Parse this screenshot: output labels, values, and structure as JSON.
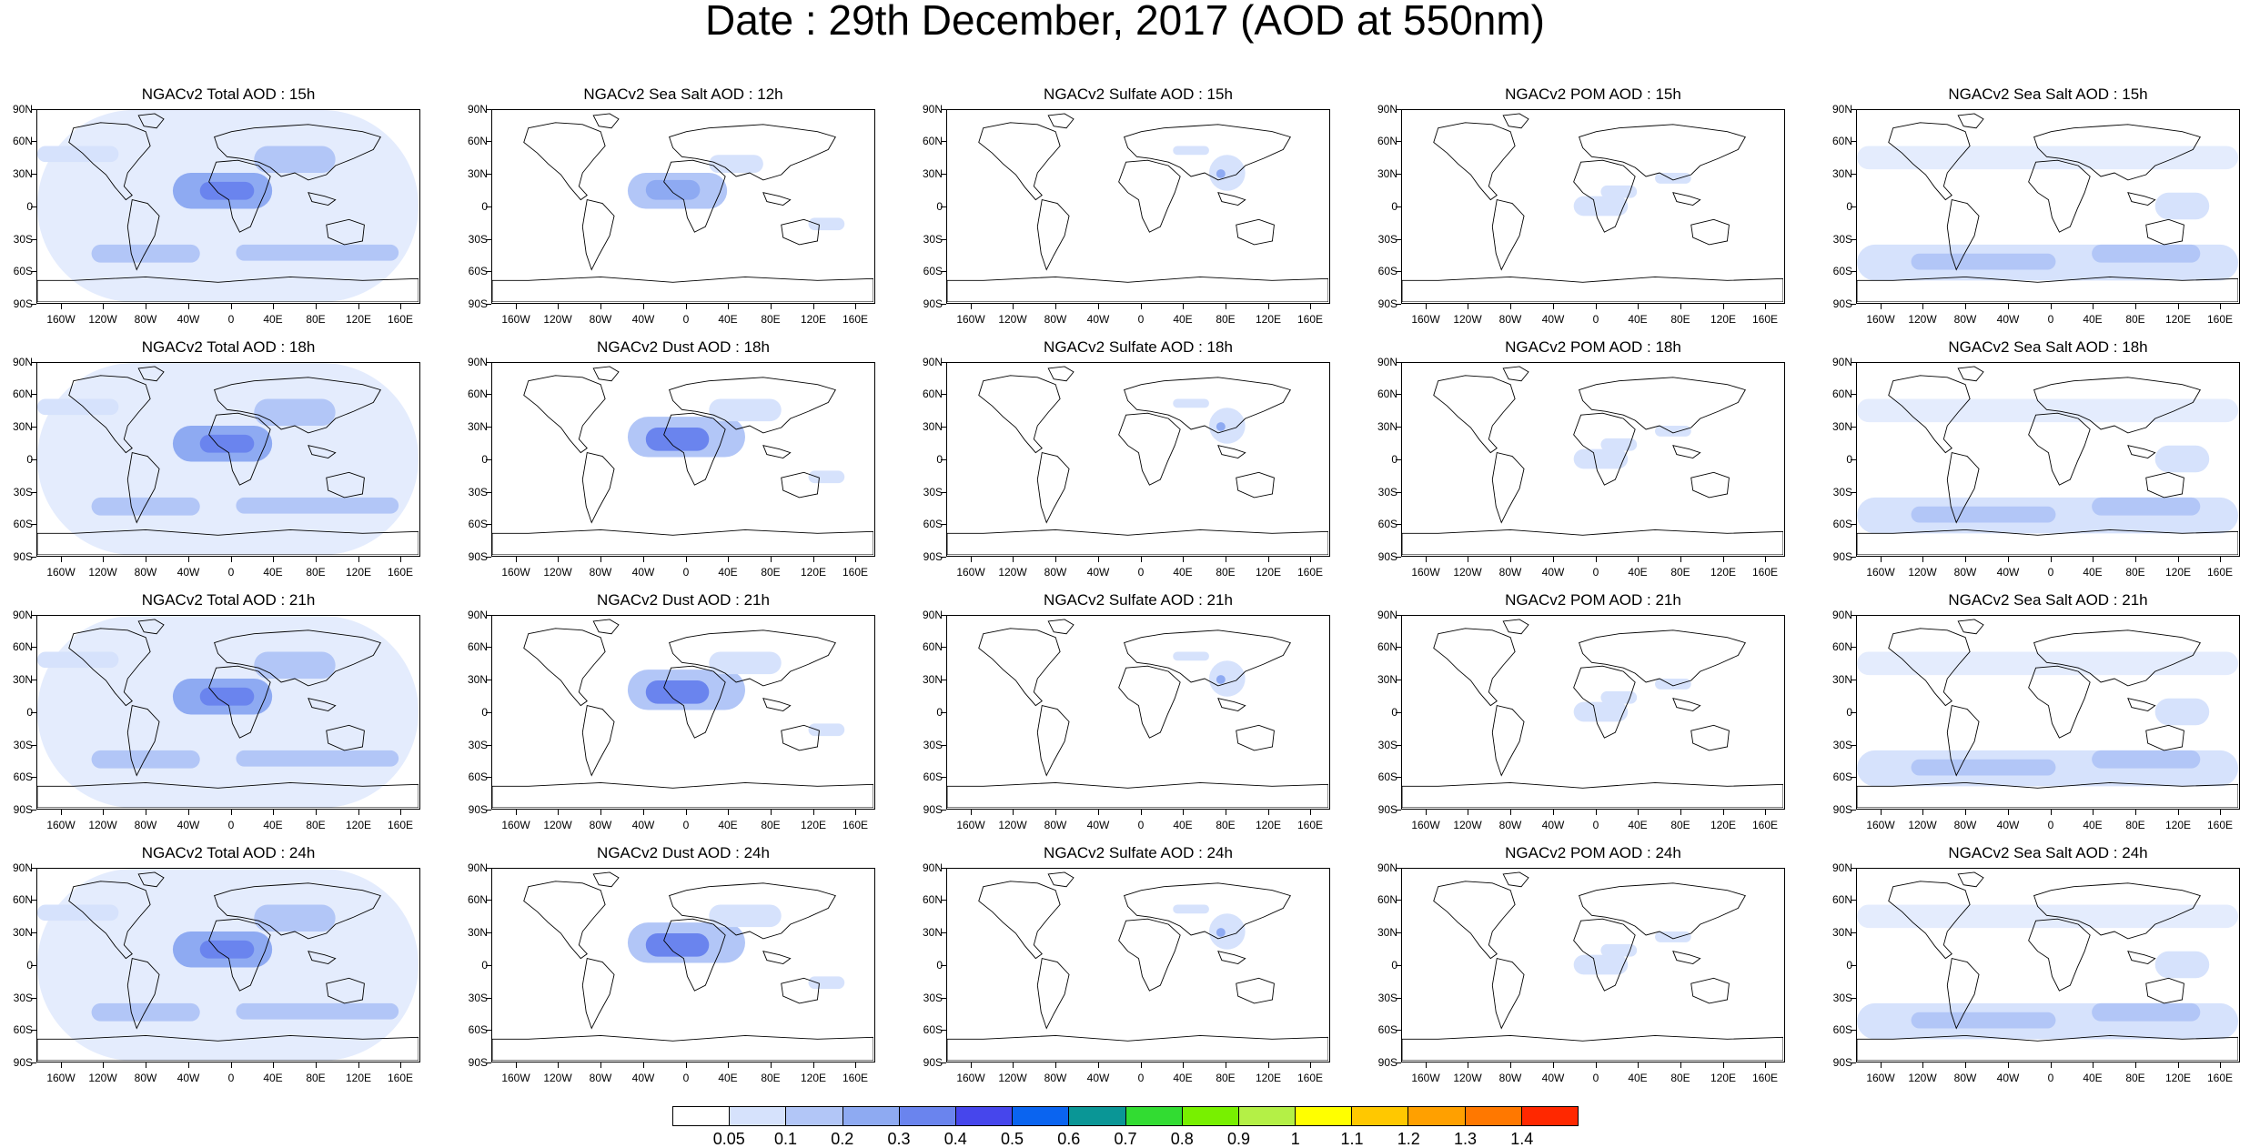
{
  "title": "Date : 29th December, 2017 (AOD at 550nm)",
  "lat_labels": [
    "90N",
    "60N",
    "30N",
    "0",
    "30S",
    "60S",
    "90S"
  ],
  "lon_labels": [
    "160W",
    "120W",
    "80W",
    "40W",
    "0",
    "40E",
    "80E",
    "120E",
    "160E"
  ],
  "panels": [
    [
      "NGACv2 Total AOD : 15h",
      "NGACv2 Sea Salt  AOD : 12h",
      "NGACv2 Sulfate AOD : 15h",
      "NGACv2 POM AOD : 15h",
      "NGACv2 Sea Salt AOD : 15h"
    ],
    [
      "NGACv2 Total AOD : 18h",
      "NGACv2 Dust AOD : 18h",
      "NGACv2 Sulfate AOD : 18h",
      "NGACv2 POM AOD : 18h",
      "NGACv2 Sea Salt AOD : 18h"
    ],
    [
      "NGACv2 Total AOD : 21h",
      "NGACv2 Dust AOD : 21h",
      "NGACv2 Sulfate AOD : 21h",
      "NGACv2 POM AOD : 21h",
      "NGACv2 Sea Salt AOD : 21h"
    ],
    [
      "NGACv2 Total AOD : 24h",
      "NGACv2 Dust AOD : 24h",
      "NGACv2 Sulfate AOD : 24h",
      "NGACv2 POM AOD : 24h",
      "NGACv2 Sea Salt  AOD : 24h"
    ]
  ],
  "colorbar": {
    "labels": [
      "0.05",
      "0.1",
      "0.2",
      "0.3",
      "0.4",
      "0.5",
      "0.6",
      "0.7",
      "0.8",
      "0.9",
      "1",
      "1.1",
      "1.2",
      "1.3",
      "1.4"
    ],
    "colors": [
      "#ffffff",
      "#d6e2fc",
      "#b2c6f7",
      "#8eaaf2",
      "#6a84ee",
      "#4646ec",
      "#0a64f0",
      "#0a9696",
      "#32dc32",
      "#78f000",
      "#b4f046",
      "#ffff00",
      "#ffc800",
      "#ffa000",
      "#ff7800",
      "#ff2800"
    ]
  }
}
